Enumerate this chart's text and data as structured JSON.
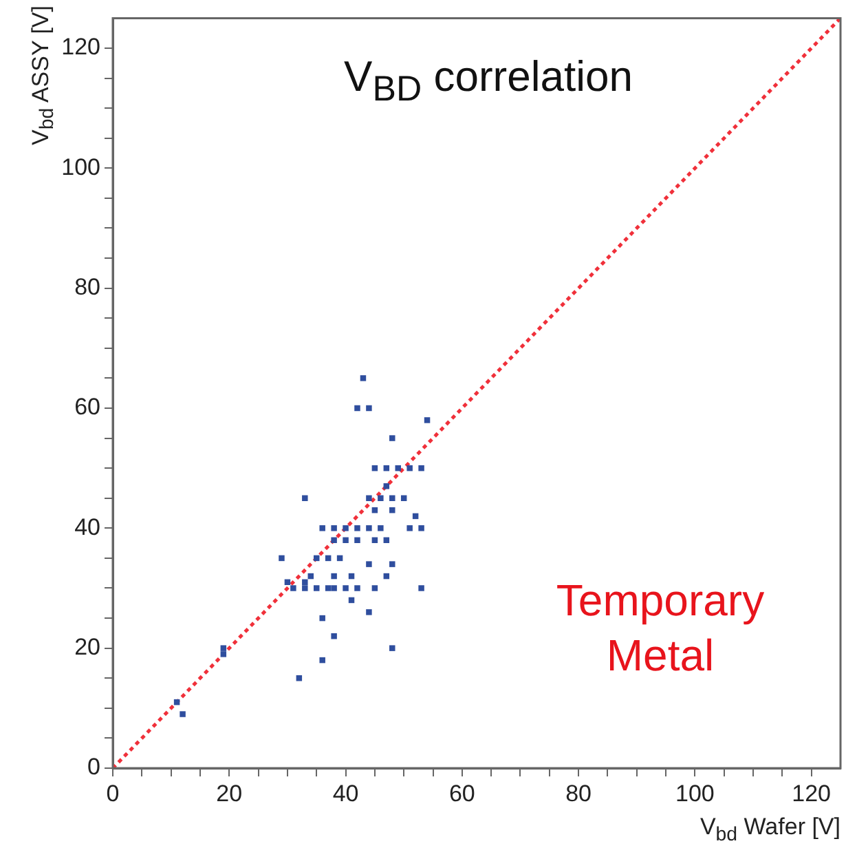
{
  "chart_data": {
    "type": "scatter",
    "title": "V$_{BD}$ correlation",
    "xlabel": "V$_{bd}$ Wafer [V]",
    "ylabel": "V$_{bd}$ ASSY [V]",
    "annotations": [
      "Temporary Metal"
    ],
    "xlim": [
      0,
      125
    ],
    "ylim": [
      0,
      125
    ],
    "xticks": [
      0,
      {
        "value": 5,
        "label": null
      },
      {
        "value": 10,
        "label": null
      },
      {
        "value": 15,
        "label": null
      },
      20,
      {
        "value": 25,
        "label": null
      },
      {
        "value": 30,
        "label": null
      },
      {
        "value": 35,
        "label": null
      },
      40,
      {
        "value": 45,
        "label": null
      },
      {
        "value": 50,
        "label": null
      },
      {
        "value": 55,
        "label": null
      },
      60,
      {
        "value": 65,
        "label": null
      },
      {
        "value": 70,
        "label": null
      },
      {
        "value": 75,
        "label": null
      },
      80,
      {
        "value": 85,
        "label": null
      },
      {
        "value": 90,
        "label": null
      },
      {
        "value": 95,
        "label": null
      },
      100,
      {
        "value": 105,
        "label": null
      },
      {
        "value": 110,
        "label": null
      },
      {
        "value": 115,
        "label": null
      },
      120
    ],
    "yticks": [
      0,
      {
        "value": 5,
        "label": null
      },
      {
        "value": 10,
        "label": null
      },
      {
        "value": 15,
        "label": null
      },
      20,
      {
        "value": 25,
        "label": null
      },
      {
        "value": 30,
        "label": null
      },
      {
        "value": 35,
        "label": null
      },
      40,
      {
        "value": 45,
        "label": null
      },
      {
        "value": 50,
        "label": null
      },
      {
        "value": 55,
        "label": null
      },
      60,
      {
        "value": 65,
        "label": null
      },
      {
        "value": 70,
        "label": null
      },
      {
        "value": 75,
        "label": null
      },
      80,
      {
        "value": 85,
        "label": null
      },
      {
        "value": 90,
        "label": null
      },
      {
        "value": 95,
        "label": null
      },
      100,
      {
        "value": 105,
        "label": null
      },
      {
        "value": 110,
        "label": null
      },
      {
        "value": 115,
        "label": null
      },
      120
    ],
    "grid": false,
    "legend": false,
    "series": [
      {
        "type": "scatter",
        "color": "#2f4e9e",
        "marker": "square",
        "x": [
          11,
          12,
          19,
          19,
          32,
          36,
          36,
          38,
          48,
          44,
          41,
          53,
          30,
          33,
          34,
          38,
          41,
          47,
          31,
          33,
          35,
          37,
          38,
          40,
          42,
          45,
          29,
          35,
          37,
          39,
          44,
          48,
          38,
          40,
          42,
          45,
          47,
          36,
          38,
          40,
          42,
          44,
          46,
          51,
          53,
          45,
          48,
          52,
          33,
          44,
          46,
          48,
          50,
          47,
          45,
          47,
          49,
          51,
          53,
          48,
          54,
          42,
          44,
          43
        ],
        "values": [
          11,
          9,
          20,
          19,
          15,
          18,
          25,
          22,
          20,
          26,
          28,
          30,
          31,
          31,
          32,
          32,
          32,
          32,
          30,
          30,
          30,
          30,
          30,
          30,
          30,
          30,
          35,
          35,
          35,
          35,
          34,
          34,
          38,
          38,
          38,
          38,
          38,
          40,
          40,
          40,
          40,
          40,
          40,
          40,
          40,
          43,
          43,
          42,
          45,
          45,
          45,
          45,
          45,
          47,
          50,
          50,
          50,
          50,
          50,
          55,
          58,
          60,
          60,
          65
        ]
      },
      {
        "type": "line",
        "color": "#f0303a",
        "marker": "none",
        "line_style": "dotted",
        "x": [
          0,
          125
        ],
        "values": [
          0,
          125
        ]
      }
    ]
  }
}
